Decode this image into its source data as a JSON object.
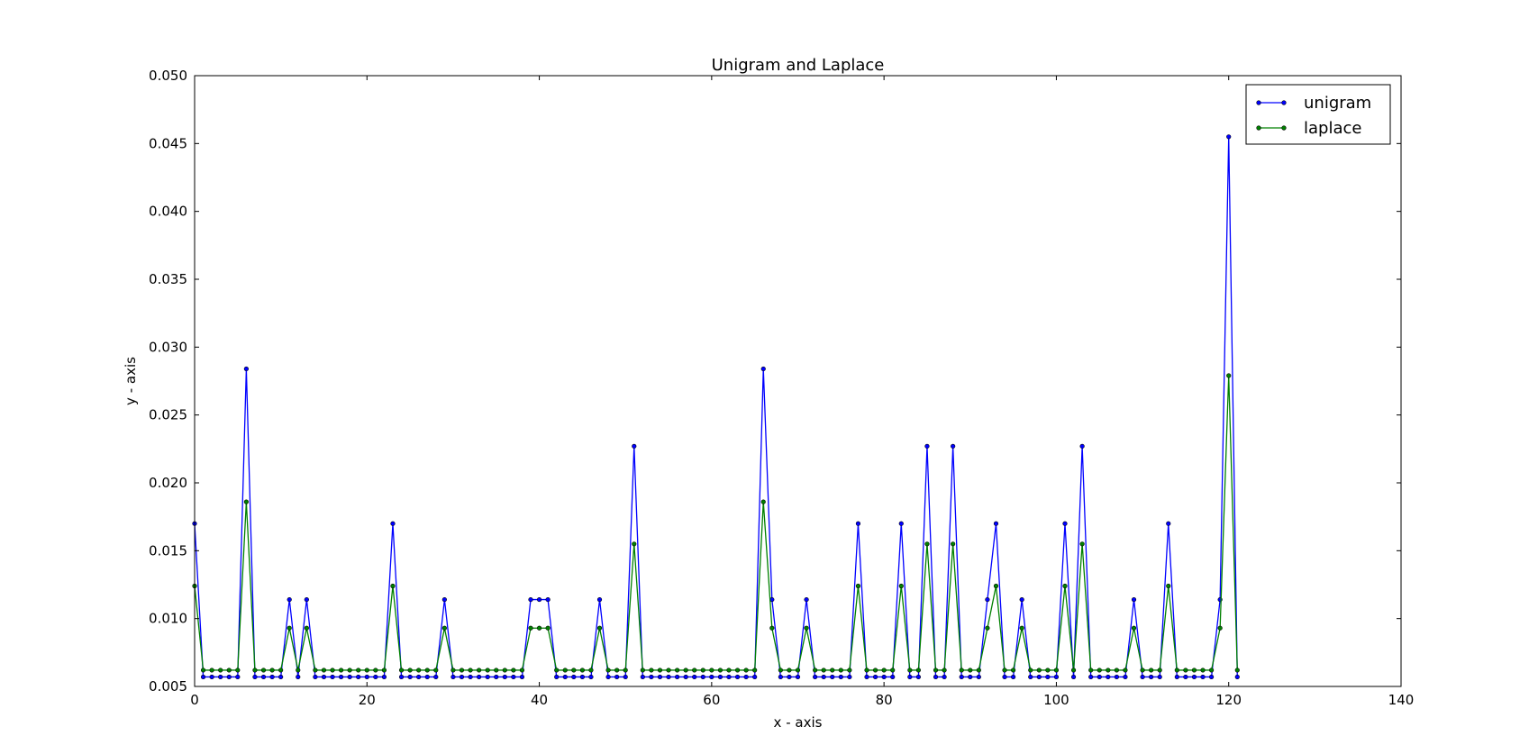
{
  "chart_data": {
    "type": "line",
    "title": "Unigram and Laplace",
    "xlabel": "x - axis",
    "ylabel": "y - axis",
    "xlim": [
      0,
      140
    ],
    "ylim": [
      0.005,
      0.05
    ],
    "x_ticks": [
      0,
      20,
      40,
      60,
      80,
      100,
      120,
      140
    ],
    "y_ticks": [
      0.005,
      0.01,
      0.015,
      0.02,
      0.025,
      0.03,
      0.035,
      0.04,
      0.045,
      0.05
    ],
    "x_tick_labels": [
      "0",
      "20",
      "40",
      "60",
      "80",
      "100",
      "120",
      "140"
    ],
    "y_tick_labels": [
      "0.005",
      "0.010",
      "0.015",
      "0.020",
      "0.025",
      "0.030",
      "0.035",
      "0.040",
      "0.045",
      "0.050"
    ],
    "grid": false,
    "legend": {
      "position": "top-right",
      "entries": [
        "unigram",
        "laplace"
      ]
    },
    "series": [
      {
        "name": "unigram",
        "color": "#0000ff",
        "values": [
          0.017,
          0.0057,
          0.0057,
          0.0057,
          0.0057,
          0.0057,
          0.0284,
          0.0057,
          0.0057,
          0.0057,
          0.0057,
          0.0114,
          0.0057,
          0.0114,
          0.0057,
          0.0057,
          0.0057,
          0.0057,
          0.0057,
          0.0057,
          0.0057,
          0.0057,
          0.0057,
          0.017,
          0.0057,
          0.0057,
          0.0057,
          0.0057,
          0.0057,
          0.0114,
          0.0057,
          0.0057,
          0.0057,
          0.0057,
          0.0057,
          0.0057,
          0.0057,
          0.0057,
          0.0057,
          0.0114,
          0.0114,
          0.0114,
          0.0057,
          0.0057,
          0.0057,
          0.0057,
          0.0057,
          0.0114,
          0.0057,
          0.0057,
          0.0057,
          0.0227,
          0.0057,
          0.0057,
          0.0057,
          0.0057,
          0.0057,
          0.0057,
          0.0057,
          0.0057,
          0.0057,
          0.0057,
          0.0057,
          0.0057,
          0.0057,
          0.0057,
          0.0284,
          0.0114,
          0.0057,
          0.0057,
          0.0057,
          0.0114,
          0.0057,
          0.0057,
          0.0057,
          0.0057,
          0.0057,
          0.017,
          0.0057,
          0.0057,
          0.0057,
          0.0057,
          0.017,
          0.0057,
          0.0057,
          0.0227,
          0.0057,
          0.0057,
          0.0227,
          0.0057,
          0.0057,
          0.0057,
          0.0114,
          0.017,
          0.0057,
          0.0057,
          0.0114,
          0.0057,
          0.0057,
          0.0057,
          0.0057,
          0.017,
          0.0057,
          0.0227,
          0.0057,
          0.0057,
          0.0057,
          0.0057,
          0.0057,
          0.0114,
          0.0057,
          0.0057,
          0.0057,
          0.017,
          0.0057,
          0.0057,
          0.0057,
          0.0057,
          0.0057,
          0.0114,
          0.0455,
          0.0057
        ]
      },
      {
        "name": "laplace",
        "color": "#008000",
        "values": [
          0.0124,
          0.0062,
          0.0062,
          0.0062,
          0.0062,
          0.0062,
          0.0186,
          0.0062,
          0.0062,
          0.0062,
          0.0062,
          0.0093,
          0.0062,
          0.0093,
          0.0062,
          0.0062,
          0.0062,
          0.0062,
          0.0062,
          0.0062,
          0.0062,
          0.0062,
          0.0062,
          0.0124,
          0.0062,
          0.0062,
          0.0062,
          0.0062,
          0.0062,
          0.0093,
          0.0062,
          0.0062,
          0.0062,
          0.0062,
          0.0062,
          0.0062,
          0.0062,
          0.0062,
          0.0062,
          0.0093,
          0.0093,
          0.0093,
          0.0062,
          0.0062,
          0.0062,
          0.0062,
          0.0062,
          0.0093,
          0.0062,
          0.0062,
          0.0062,
          0.0155,
          0.0062,
          0.0062,
          0.0062,
          0.0062,
          0.0062,
          0.0062,
          0.0062,
          0.0062,
          0.0062,
          0.0062,
          0.0062,
          0.0062,
          0.0062,
          0.0062,
          0.0186,
          0.0093,
          0.0062,
          0.0062,
          0.0062,
          0.0093,
          0.0062,
          0.0062,
          0.0062,
          0.0062,
          0.0062,
          0.0124,
          0.0062,
          0.0062,
          0.0062,
          0.0062,
          0.0124,
          0.0062,
          0.0062,
          0.0155,
          0.0062,
          0.0062,
          0.0155,
          0.0062,
          0.0062,
          0.0062,
          0.0093,
          0.0124,
          0.0062,
          0.0062,
          0.0093,
          0.0062,
          0.0062,
          0.0062,
          0.0062,
          0.0124,
          0.0062,
          0.0155,
          0.0062,
          0.0062,
          0.0062,
          0.0062,
          0.0062,
          0.0093,
          0.0062,
          0.0062,
          0.0062,
          0.0124,
          0.0062,
          0.0062,
          0.0062,
          0.0062,
          0.0062,
          0.0093,
          0.0279,
          0.0062
        ]
      }
    ]
  }
}
